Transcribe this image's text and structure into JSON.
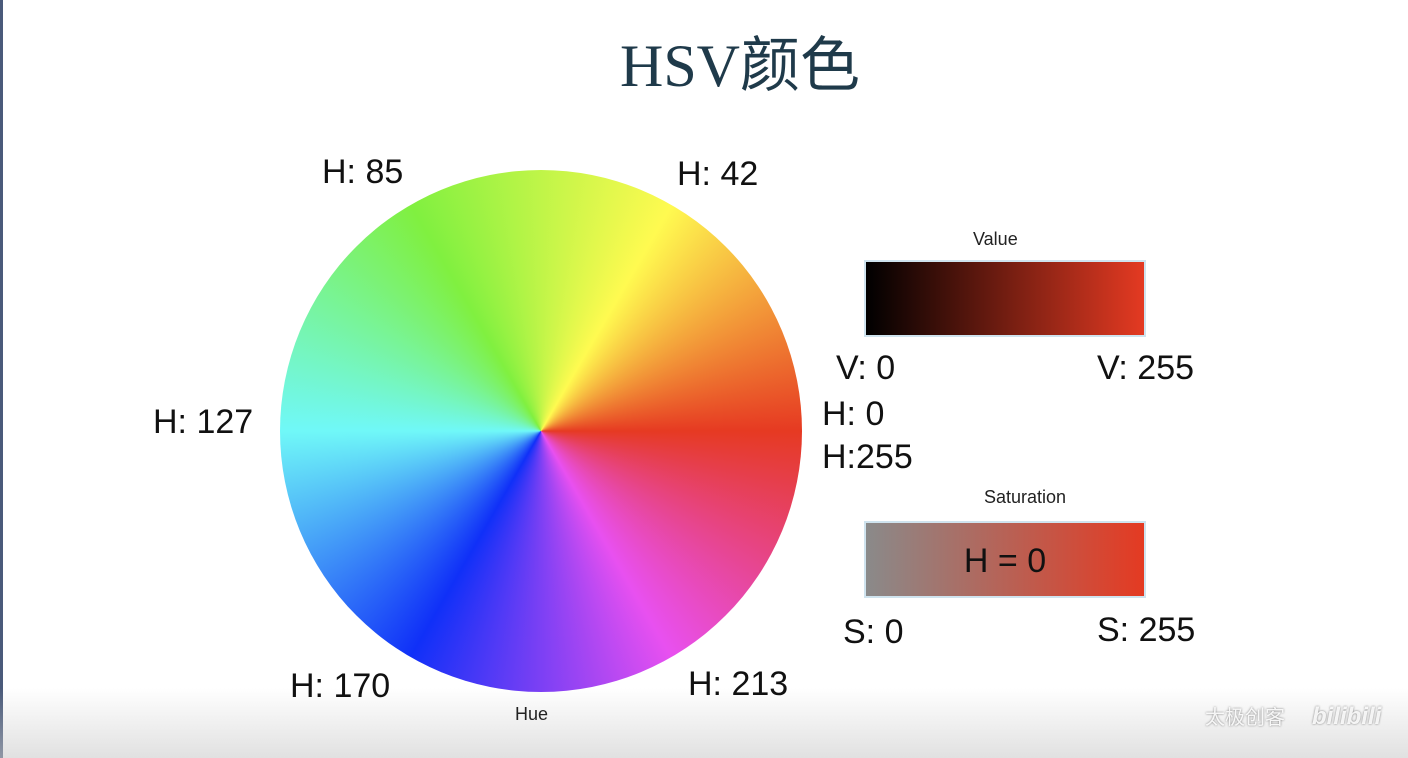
{
  "title": "HSV颜色",
  "hue_wheel": {
    "caption": "Hue",
    "labels": [
      "H: 85",
      "H: 42",
      "H: 127",
      "H: 0",
      "H:255",
      "H: 170",
      "H: 213"
    ]
  },
  "value_bar": {
    "title": "Value",
    "min_label": "V: 0",
    "max_label": "V: 255"
  },
  "saturation_bar": {
    "title": "Saturation",
    "center_label": "H = 0",
    "min_label": "S: 0",
    "max_label": "S: 255"
  },
  "watermark": "太极创客",
  "logo": "bilibili"
}
